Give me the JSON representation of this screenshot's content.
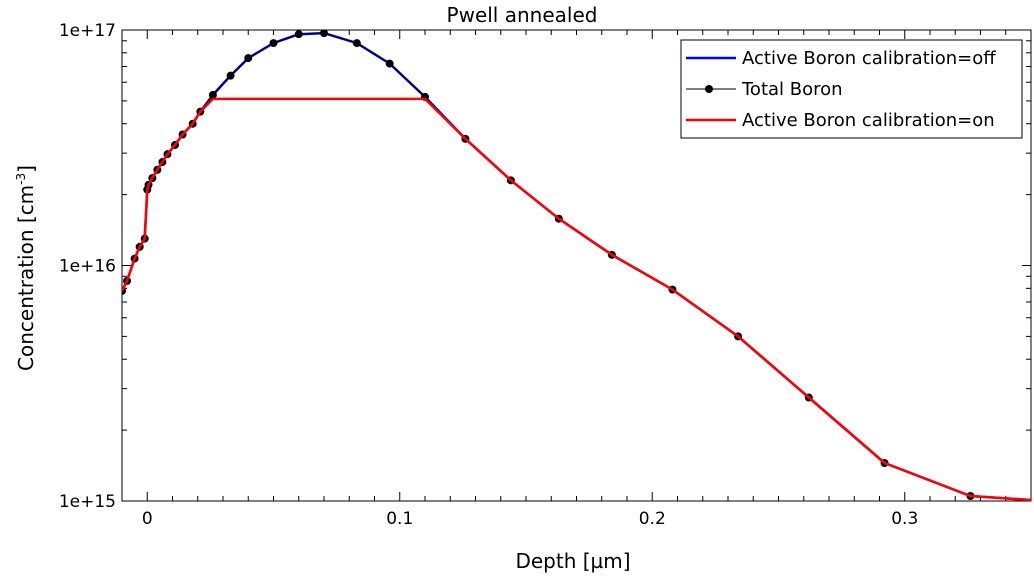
{
  "chart_data": {
    "type": "line",
    "title": "Pwell annealed",
    "xlabel": "Depth [µm]",
    "ylabel_main": "Concentration [cm",
    "ylabel_sup": "-3",
    "ylabel_end": "]",
    "xlim": [
      -0.01,
      0.35
    ],
    "ylim": [
      1000000000000000.0,
      1e+17
    ],
    "yscale": "log",
    "x_ticks": [
      0,
      0.1,
      0.2,
      0.3
    ],
    "x_tick_labels": [
      "0",
      "0.1",
      "0.2",
      "0.3"
    ],
    "y_ticks": [
      1000000000000000.0,
      1e+16,
      1e+17
    ],
    "y_tick_labels": [
      "1e+15",
      "1e+16",
      "1e+17"
    ],
    "grid": false,
    "legend_position": "top-right",
    "series": [
      {
        "name": "Active Boron calibration=off",
        "color": "#0000ff",
        "marker": "none",
        "x": [
          -0.01,
          -0.008,
          -0.005,
          -0.003,
          -0.001,
          0.0,
          0.0005,
          0.002,
          0.004,
          0.006,
          0.008,
          0.011,
          0.014,
          0.018,
          0.021,
          0.026,
          0.033,
          0.04,
          0.05,
          0.06,
          0.07,
          0.083,
          0.096,
          0.11,
          0.126,
          0.144,
          0.163,
          0.184,
          0.208,
          0.234,
          0.262,
          0.292,
          0.326,
          0.35
        ],
        "y": [
          7800000000000000.0,
          8600000000000000.0,
          1.07e+16,
          1.2e+16,
          1.3e+16,
          2.1e+16,
          2.2e+16,
          2.35e+16,
          2.55e+16,
          2.75e+16,
          2.97e+16,
          3.25e+16,
          3.6e+16,
          4e+16,
          4.5e+16,
          5.3e+16,
          6.4e+16,
          7.6e+16,
          8.8e+16,
          9.6e+16,
          9.7e+16,
          8.8e+16,
          7.2e+16,
          5.2e+16,
          3.45e+16,
          2.3e+16,
          1.58e+16,
          1.11e+16,
          7900000000000000.0,
          5000000000000000.0,
          2750000000000000.0,
          1450000000000000.0,
          1050000000000000.0,
          1010000000000000.0
        ]
      },
      {
        "name": "Total Boron",
        "color": "#000000",
        "marker": "circle",
        "x": [
          -0.01,
          -0.008,
          -0.005,
          -0.003,
          -0.001,
          0.0,
          0.0005,
          0.002,
          0.004,
          0.006,
          0.008,
          0.011,
          0.014,
          0.018,
          0.021,
          0.026,
          0.033,
          0.04,
          0.05,
          0.06,
          0.07,
          0.083,
          0.096,
          0.11,
          0.126,
          0.144,
          0.163,
          0.184,
          0.208,
          0.234,
          0.262,
          0.292,
          0.326
        ],
        "y": [
          7800000000000000.0,
          8600000000000000.0,
          1.07e+16,
          1.2e+16,
          1.3e+16,
          2.1e+16,
          2.2e+16,
          2.35e+16,
          2.55e+16,
          2.75e+16,
          2.97e+16,
          3.25e+16,
          3.6e+16,
          4e+16,
          4.5e+16,
          5.3e+16,
          6.4e+16,
          7.6e+16,
          8.8e+16,
          9.6e+16,
          9.7e+16,
          8.8e+16,
          7.2e+16,
          5.2e+16,
          3.45e+16,
          2.3e+16,
          1.58e+16,
          1.11e+16,
          7900000000000000.0,
          5000000000000000.0,
          2750000000000000.0,
          1450000000000000.0,
          1050000000000000.0
        ]
      },
      {
        "name": "Active Boron calibration=on",
        "color": "#ff0000",
        "marker": "none",
        "x": [
          -0.01,
          -0.008,
          -0.005,
          -0.003,
          -0.001,
          0.0,
          0.0005,
          0.002,
          0.004,
          0.006,
          0.008,
          0.011,
          0.014,
          0.018,
          0.021,
          0.026,
          0.11,
          0.126,
          0.144,
          0.163,
          0.184,
          0.208,
          0.234,
          0.262,
          0.292,
          0.326,
          0.35
        ],
        "y": [
          7800000000000000.0,
          8600000000000000.0,
          1.07e+16,
          1.2e+16,
          1.3e+16,
          2.1e+16,
          2.2e+16,
          2.35e+16,
          2.55e+16,
          2.75e+16,
          2.97e+16,
          3.25e+16,
          3.6e+16,
          4e+16,
          4.5e+16,
          5.1e+16,
          5.1e+16,
          3.45e+16,
          2.3e+16,
          1.58e+16,
          1.11e+16,
          7900000000000000.0,
          5000000000000000.0,
          2750000000000000.0,
          1450000000000000.0,
          1050000000000000.0,
          1010000000000000.0
        ]
      }
    ]
  }
}
